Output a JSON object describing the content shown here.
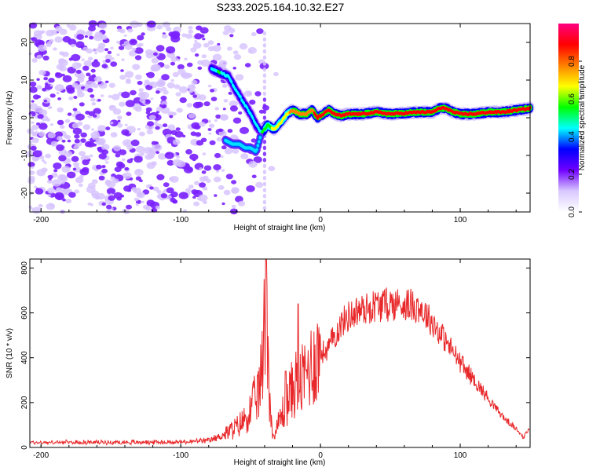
{
  "page_title": "S233.2025.164.10.32.E27",
  "chart_data": [
    {
      "type": "heatmap",
      "xlabel": "Height of straight line (km)",
      "ylabel": "Frequency (Hz)",
      "xlim": [
        -208,
        150
      ],
      "ylim": [
        -25,
        25
      ],
      "xticks": [
        -200,
        -100,
        0,
        100
      ],
      "yticks": [
        -20,
        -10,
        0,
        10,
        20
      ],
      "colorbar": {
        "label": "Normalized spectral amplitude",
        "range": [
          0,
          1
        ],
        "ticks": [
          "0.0",
          "0.2",
          "0.4",
          "0.6",
          "0.8"
        ],
        "colors": [
          "#ffffff",
          "#d8c8ff",
          "#7000ff",
          "#0000ff",
          "#00ffff",
          "#00ff00",
          "#ffff00",
          "#ff8000",
          "#ff0000",
          "#ff0080"
        ]
      },
      "noise_region_km": [
        -208,
        -30
      ],
      "signal_track": {
        "x": [
          -78,
          -72,
          -66,
          -60,
          -55,
          -50,
          -46,
          -42,
          -38,
          -33,
          -28,
          -24,
          -20,
          -15,
          -10,
          -6,
          -2,
          2,
          6,
          10,
          15,
          20,
          30,
          40,
          50,
          60,
          70,
          80,
          85,
          90,
          95,
          100,
          110,
          120,
          130,
          140,
          150
        ],
        "y": [
          13,
          12,
          11,
          7,
          4,
          1,
          -2,
          -4,
          -2,
          -3,
          -1,
          1,
          2,
          1,
          1,
          2,
          0,
          1,
          2,
          1,
          0.5,
          1,
          1,
          1.5,
          1,
          1.2,
          1.5,
          1.5,
          2.5,
          2.5,
          1.5,
          1,
          1,
          1.5,
          1.5,
          2,
          2.5
        ],
        "amplitude": [
          0.35,
          0.4,
          0.3,
          0.3,
          0.3,
          0.35,
          0.3,
          0.4,
          0.5,
          0.55,
          0.6,
          0.65,
          0.7,
          0.75,
          0.8,
          0.8,
          0.85,
          0.85,
          0.9,
          0.9,
          0.9,
          0.9,
          0.9,
          0.9,
          0.9,
          0.9,
          0.9,
          0.9,
          0.9,
          0.9,
          0.9,
          0.9,
          0.9,
          0.9,
          0.9,
          0.9,
          0.9
        ]
      },
      "lower_branch": {
        "x": [
          -68,
          -63,
          -58,
          -54,
          -50,
          -46,
          -43
        ],
        "y": [
          -6,
          -7,
          -7,
          -8,
          -8,
          -9,
          -5
        ]
      },
      "vertical_streak_km": -40,
      "colors": {
        "noise": "#7a20ff",
        "noise_light": "#d6c2ff"
      }
    },
    {
      "type": "line",
      "xlabel": "Height of straight line (km)",
      "ylabel": "SNR (10 * v/v)",
      "xlim": [
        -208,
        150
      ],
      "ylim": [
        0,
        840
      ],
      "xticks": [
        -200,
        -100,
        0,
        100
      ],
      "yticks": [
        0,
        200,
        400,
        600,
        800
      ],
      "series": [
        {
          "color": "#e8282a",
          "x": [
            -208,
            -100,
            -80,
            -70,
            -60,
            -55,
            -50,
            -47,
            -44,
            -42,
            -40,
            -39,
            -38,
            -37,
            -35,
            -33,
            -30,
            -25,
            -20,
            -17,
            -15,
            -10,
            -5,
            0,
            5,
            10,
            15,
            20,
            25,
            30,
            40,
            50,
            60,
            70,
            80,
            90,
            100,
            110,
            120,
            130,
            140,
            145,
            150
          ],
          "y": [
            22,
            24,
            30,
            55,
            90,
            120,
            165,
            210,
            255,
            330,
            560,
            700,
            620,
            300,
            90,
            45,
            110,
            190,
            260,
            300,
            280,
            330,
            390,
            420,
            435,
            500,
            550,
            585,
            605,
            615,
            635,
            640,
            640,
            630,
            560,
            470,
            380,
            300,
            220,
            140,
            80,
            55,
            80
          ],
          "spikes": [
            {
              "x": -39,
              "y": 840
            },
            {
              "x": -16,
              "y": 640
            },
            {
              "x": -25,
              "y": 340
            }
          ]
        }
      ]
    }
  ]
}
